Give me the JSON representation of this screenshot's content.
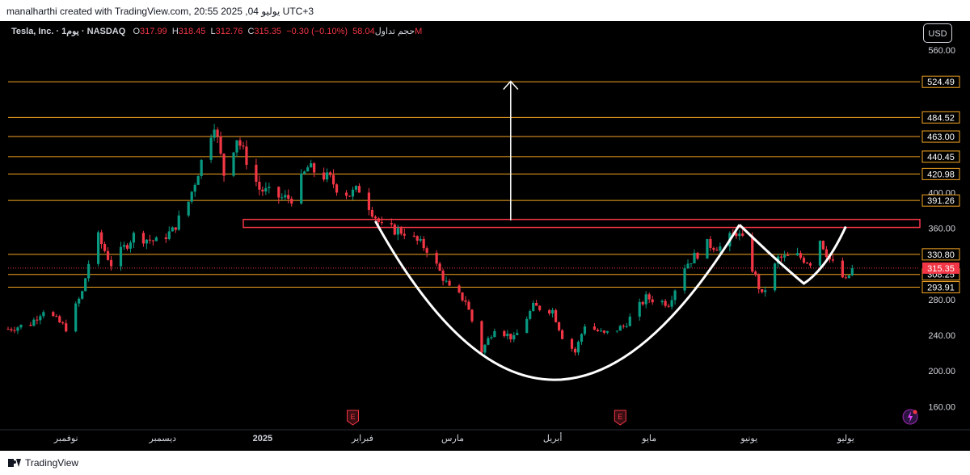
{
  "header": {
    "attribution": "manalharthi created with TradingView.com, 20:55 2025 ,04 يوليو UTC+3"
  },
  "legend": {
    "symbol": "Tesla, Inc. · يوم1 · NASDAQ",
    "o_label": "O",
    "o_value": "317.99",
    "h_label": "H",
    "h_value": "318.45",
    "l_label": "L",
    "l_value": "312.76",
    "c_label": "C",
    "c_value": "315.35",
    "change": "−0.30 (−0.10%)",
    "volume_label": "حجم تداول",
    "volume_value": "58.04M"
  },
  "toolbar": {
    "currency_button": "USD"
  },
  "footer": {
    "brand": "TradingView"
  },
  "colors": {
    "background": "#000000",
    "up": "#089981",
    "down": "#f23645",
    "level_line": "#f5a623",
    "resistance_box": "#f23645",
    "pattern": "#ffffff",
    "axis_text": "#d1d4dc",
    "price_tag": "#f23645"
  },
  "chart_data": {
    "type": "candlestick",
    "symbol": "TSLA",
    "interval": "1D",
    "y_range": [
      125,
      580
    ],
    "y_ticks": [
      560,
      400,
      360,
      280,
      240,
      200,
      160
    ],
    "y_tick_labels": [
      "560.00",
      "400.00",
      "360.00",
      "280.00",
      "240.00",
      "200.00",
      "160.00"
    ],
    "x_range": [
      "2024-10-14",
      "2025-07-24"
    ],
    "x_ticks": [
      {
        "date": "2024-11-01",
        "label": "نوفمبر"
      },
      {
        "date": "2024-12-01",
        "label": "ديسمبر"
      },
      {
        "date": "2025-01-01",
        "label": "2025"
      },
      {
        "date": "2025-02-01",
        "label": "فبراير"
      },
      {
        "date": "2025-03-01",
        "label": "مارس"
      },
      {
        "date": "2025-04-01",
        "label": "أبريل"
      },
      {
        "date": "2025-05-01",
        "label": "مايو"
      },
      {
        "date": "2025-06-01",
        "label": "يونيو"
      },
      {
        "date": "2025-07-01",
        "label": "يوليو"
      }
    ],
    "levels": [
      524.49,
      484.52,
      463.0,
      440.45,
      420.98,
      391.26,
      330.8,
      308.25,
      293.91
    ],
    "level_labels": [
      "524.49",
      "484.52",
      "463.00",
      "440.45",
      "420.98",
      "391.26",
      "330.80",
      "308.25",
      "293.91"
    ],
    "last_price": 315.35,
    "last_price_label": "315.35",
    "resistance_zone": {
      "low": 361,
      "high": 370,
      "start": "2024-12-26"
    },
    "projection_arrow": {
      "date": "2025-03-19",
      "from": 369,
      "to": 525
    },
    "cup": {
      "left": [
        "2025-02-05",
        368
      ],
      "bottom": [
        "2025-03-31",
        190
      ],
      "right": [
        "2025-05-29",
        364
      ]
    },
    "handle": [
      [
        "2025-05-29",
        364
      ],
      [
        "2025-06-10",
        322
      ],
      [
        "2025-06-18",
        298
      ],
      [
        "2025-06-25",
        315
      ],
      [
        "2025-07-01",
        362
      ]
    ],
    "earnings_markers": [
      {
        "date": "2025-01-29",
        "label": "E"
      },
      {
        "date": "2025-04-22",
        "label": "E"
      }
    ],
    "dividend_marker": {
      "date": "2025-07-21"
    },
    "path": [
      [
        "2024-10-14",
        247
      ],
      [
        "2024-10-21",
        253
      ],
      [
        "2024-10-25",
        269
      ],
      [
        "2024-11-01",
        248
      ],
      [
        "2024-11-06",
        288
      ],
      [
        "2024-11-08",
        321
      ],
      [
        "2024-11-11",
        350
      ],
      [
        "2024-11-15",
        320
      ],
      [
        "2024-11-22",
        352
      ],
      [
        "2024-11-29",
        345
      ],
      [
        "2024-12-04",
        357
      ],
      [
        "2024-12-09",
        390
      ],
      [
        "2024-12-12",
        424
      ],
      [
        "2024-12-17",
        479
      ],
      [
        "2024-12-20",
        421
      ],
      [
        "2024-12-24",
        462
      ],
      [
        "2024-12-31",
        404
      ],
      [
        "2025-01-07",
        394
      ],
      [
        "2025-01-10",
        394
      ],
      [
        "2025-01-15",
        428
      ],
      [
        "2025-01-22",
        415
      ],
      [
        "2025-01-24",
        406
      ],
      [
        "2025-01-28",
        398
      ],
      [
        "2025-01-31",
        404
      ],
      [
        "2025-02-07",
        361
      ],
      [
        "2025-02-14",
        356
      ],
      [
        "2025-02-21",
        337
      ],
      [
        "2025-02-28",
        292
      ],
      [
        "2025-03-05",
        279
      ],
      [
        "2025-03-10",
        222
      ],
      [
        "2025-03-14",
        249
      ],
      [
        "2025-03-20",
        236
      ],
      [
        "2025-03-26",
        272
      ],
      [
        "2025-04-01",
        268
      ],
      [
        "2025-04-04",
        239
      ],
      [
        "2025-04-08",
        221
      ],
      [
        "2025-04-11",
        252
      ],
      [
        "2025-04-17",
        241
      ],
      [
        "2025-04-23",
        250
      ],
      [
        "2025-04-30",
        282
      ],
      [
        "2025-05-07",
        276
      ],
      [
        "2025-05-12",
        318
      ],
      [
        "2025-05-19",
        342
      ],
      [
        "2025-05-23",
        339
      ],
      [
        "2025-05-28",
        356
      ],
      [
        "2025-05-30",
        346
      ],
      [
        "2025-06-05",
        284
      ],
      [
        "2025-06-10",
        326
      ],
      [
        "2025-06-16",
        329
      ],
      [
        "2025-06-20",
        322
      ],
      [
        "2025-06-23",
        348
      ],
      [
        "2025-06-26",
        325
      ],
      [
        "2025-07-01",
        300
      ],
      [
        "2025-07-03",
        315
      ]
    ]
  }
}
